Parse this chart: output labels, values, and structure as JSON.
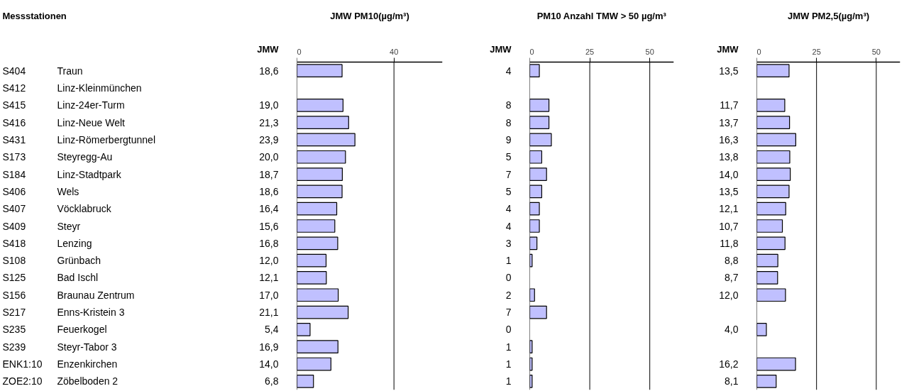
{
  "chart_data": [
    {
      "type": "bar",
      "orientation": "horizontal",
      "title": "JMW PM10(µg/m³)",
      "ylabel": "Messstationen",
      "annotations": [
        "JMW"
      ],
      "categories": [
        "S404 Traun",
        "S412 Linz-Kleinmünchen",
        "S415 Linz-24er-Turm",
        "S416 Linz-Neue Welt",
        "S431 Linz-Römerbergtunnel",
        "S173 Steyregg-Au",
        "S184 Linz-Stadtpark",
        "S406 Wels",
        "S407 Vöcklabruck",
        "S409 Steyr",
        "S418 Lenzing",
        "S108 Grünbach",
        "S125 Bad Ischl",
        "S156 Braunau Zentrum",
        "S217 Enns-Kristein 3",
        "S235 Feuerkogel",
        "S239 Steyr-Tabor 3",
        "ENK1:10 Enzenkirchen",
        "ZOE2:10 Zöbelboden 2"
      ],
      "values": [
        18.6,
        null,
        19.0,
        21.3,
        23.9,
        20.0,
        18.7,
        18.6,
        16.4,
        15.6,
        16.8,
        12.0,
        12.1,
        17.0,
        21.1,
        5.4,
        16.9,
        14.0,
        6.8
      ],
      "value_labels": [
        "18,6",
        null,
        "19,0",
        "21,3",
        "23,9",
        "20,0",
        "18,7",
        "18,6",
        "16,4",
        "15,6",
        "16,8",
        "12,0",
        "12,1",
        "17,0",
        "21,1",
        "5,4",
        "16,9",
        "14,0",
        "6,8"
      ],
      "color": "#c0c0ff",
      "xlim": [
        0,
        60
      ],
      "xticks": [
        0,
        40
      ],
      "grid": "x"
    },
    {
      "type": "bar",
      "orientation": "horizontal",
      "title": "PM10 Anzahl TMW > 50 µg/m³",
      "annotations": [
        "JMW"
      ],
      "categories": [
        null,
        null,
        null,
        null,
        null,
        null,
        null,
        null,
        null,
        null,
        null,
        null,
        null,
        null,
        null,
        null,
        null,
        null,
        null
      ],
      "values": [
        4,
        null,
        8,
        8,
        9,
        5,
        7,
        5,
        4,
        4,
        3,
        1,
        0,
        2,
        7,
        0,
        1,
        1,
        1
      ],
      "data_labels": true,
      "color": "#c0c0ff",
      "xlim": [
        0,
        60
      ],
      "xticks": [
        0,
        25,
        50
      ],
      "grid": "x"
    },
    {
      "type": "bar",
      "orientation": "horizontal",
      "title": "JMW PM2,5(µg/m³)",
      "annotations": [
        "JMW"
      ],
      "categories": [
        null,
        null,
        null,
        null,
        null,
        null,
        null,
        null,
        null,
        null,
        null,
        null,
        null,
        null,
        null,
        null,
        null,
        null,
        null
      ],
      "values": [
        13.5,
        null,
        11.7,
        13.7,
        16.3,
        13.8,
        14.0,
        13.5,
        12.1,
        10.7,
        11.8,
        8.8,
        8.7,
        12.0,
        null,
        4.0,
        null,
        16.2,
        8.1
      ],
      "value_labels": [
        "13,5",
        null,
        "11,7",
        "13,7",
        "16,3",
        "13,8",
        "14,0",
        "13,5",
        "12,1",
        "10,7",
        "11,8",
        "8,8",
        "8,7",
        "12,0",
        null,
        "4,0",
        null,
        "16,2",
        "8,1"
      ],
      "color": "#c0c0ff",
      "xlim": [
        0,
        60
      ],
      "xticks": [
        0,
        25,
        50
      ],
      "grid": "x"
    }
  ]
}
